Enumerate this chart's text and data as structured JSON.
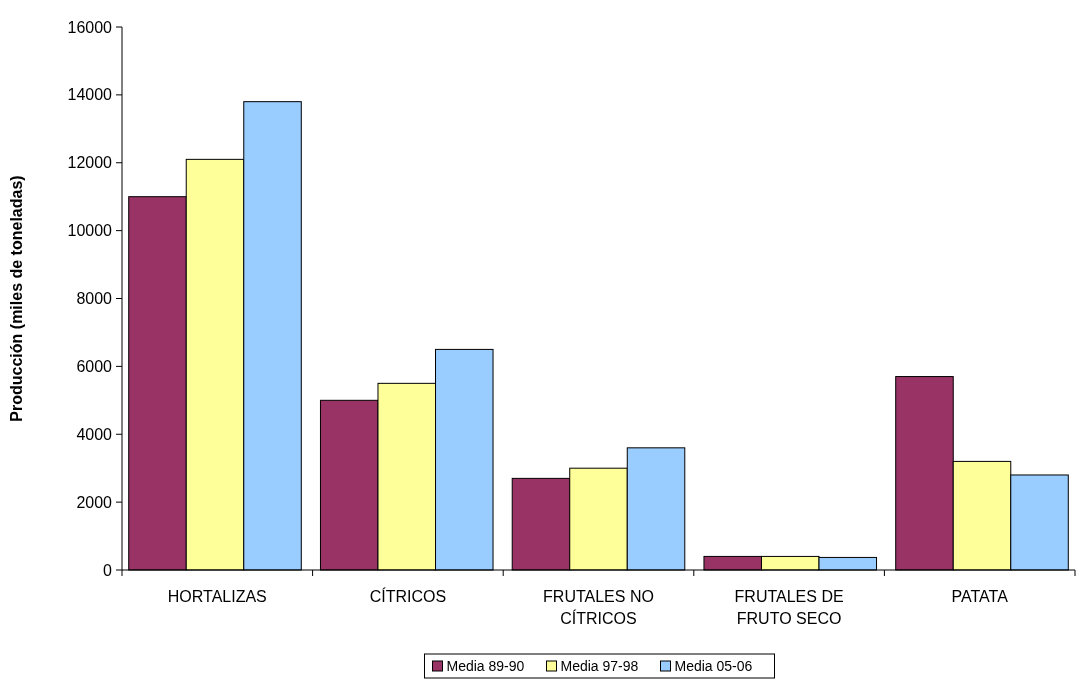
{
  "chart_data": {
    "type": "bar",
    "ylabel": "Producción (miles de toneladas)",
    "categories": [
      "HORTALIZAS",
      "CÍTRICOS",
      "FRUTALES NO CÍTRICOS",
      "FRUTALES DE FRUTO SECO",
      "PATATA"
    ],
    "series": [
      {
        "name": "Media 89-90",
        "color": "#993366",
        "values": [
          11000,
          5000,
          2700,
          400,
          5700
        ]
      },
      {
        "name": "Media 97-98",
        "color": "#ffff99",
        "values": [
          12100,
          5500,
          3000,
          400,
          3200
        ]
      },
      {
        "name": "Media 05-06",
        "color": "#99ccff",
        "values": [
          13800,
          6500,
          3600,
          370,
          2800
        ]
      }
    ],
    "ylim": [
      0,
      16000
    ],
    "yticks": [
      0,
      2000,
      4000,
      6000,
      8000,
      10000,
      12000,
      14000,
      16000
    ],
    "grid": false,
    "legend": "bottom"
  }
}
